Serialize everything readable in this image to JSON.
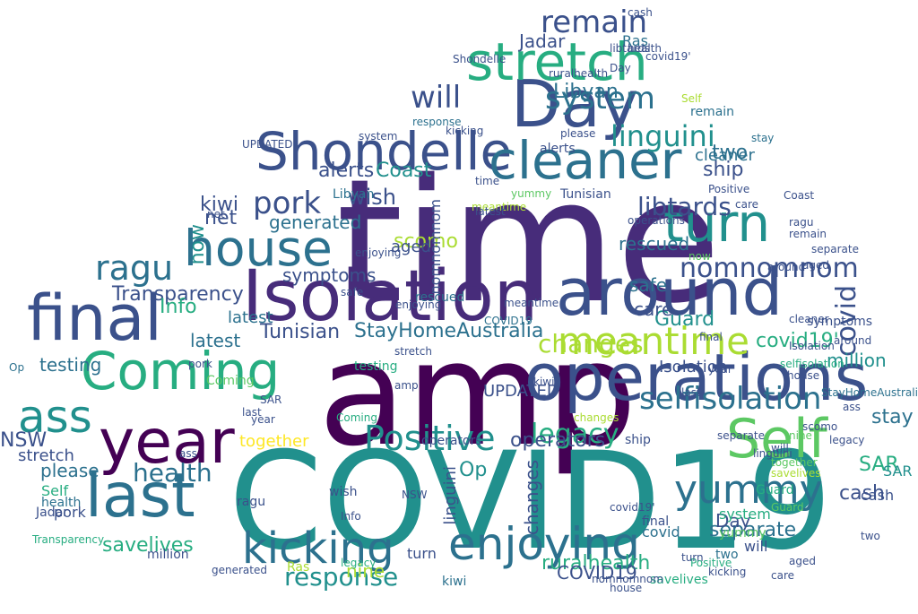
{
  "colors": {
    "background": "#ffffff",
    "palette": [
      "#440154",
      "#472c7a",
      "#3b518b",
      "#2c718e",
      "#21908d",
      "#27ad81",
      "#5cc863",
      "#aadc32",
      "#fde725"
    ]
  },
  "words": [
    {
      "text": "time",
      "color": "#472c7a"
    },
    {
      "text": "amp",
      "color": "#440154"
    },
    {
      "text": "COVID19",
      "color": "#21908d"
    },
    {
      "text": "Isolation",
      "color": "#472c7a"
    },
    {
      "text": "operations",
      "color": "#3b518b"
    },
    {
      "text": "around",
      "color": "#3b518b"
    },
    {
      "text": "Day",
      "color": "#3b518b"
    },
    {
      "text": "Shondelle",
      "color": "#3b518b"
    },
    {
      "text": "cleaner",
      "color": "#2c718e"
    },
    {
      "text": "stretch",
      "color": "#27ad81"
    },
    {
      "text": "house",
      "color": "#2c718e"
    },
    {
      "text": "Coming",
      "color": "#27ad81"
    },
    {
      "text": "last",
      "color": "#2c718e"
    },
    {
      "text": "final",
      "color": "#3b518b"
    },
    {
      "text": "year",
      "color": "#440154"
    },
    {
      "text": "Self",
      "color": "#5cc863"
    },
    {
      "text": "turn",
      "color": "#21908d"
    },
    {
      "text": "kicking",
      "color": "#2c718e"
    },
    {
      "text": "enjoying",
      "color": "#2c718e"
    },
    {
      "text": "ass",
      "color": "#21908d"
    },
    {
      "text": "meantime",
      "color": "#aadc32"
    },
    {
      "text": "nomnomnom",
      "color": "#3b518b"
    },
    {
      "text": "selfisolation",
      "color": "#2c718e"
    },
    {
      "text": "Positive",
      "color": "#21908d"
    },
    {
      "text": "yummy",
      "color": "#2c718e"
    },
    {
      "text": "remain",
      "color": "#3b518b"
    },
    {
      "text": "system",
      "color": "#2c718e"
    },
    {
      "text": "linguini",
      "color": "#21908d"
    },
    {
      "text": "pork",
      "color": "#3b518b"
    },
    {
      "text": "ragu",
      "color": "#2c718e"
    },
    {
      "text": "will",
      "color": "#3b518b"
    },
    {
      "text": "libtards",
      "color": "#3b518b"
    },
    {
      "text": "response",
      "color": "#21908d"
    },
    {
      "text": "covid",
      "color": "#3b518b"
    },
    {
      "text": "changes",
      "color": "#aadc32"
    },
    {
      "text": "legacy",
      "color": "#27ad81"
    },
    {
      "text": "health",
      "color": "#2c718e"
    },
    {
      "text": "Libyan",
      "color": "#2c718e"
    },
    {
      "text": "wish",
      "color": "#3b518b"
    },
    {
      "text": "alerts",
      "color": "#3b518b"
    },
    {
      "text": "StayHomeAustralia",
      "color": "#2c718e"
    },
    {
      "text": "Tunisian",
      "color": "#3b518b"
    },
    {
      "text": "Transparency",
      "color": "#3b518b"
    },
    {
      "text": "symptoms",
      "color": "#3b518b"
    },
    {
      "text": "generated",
      "color": "#2c718e"
    },
    {
      "text": "kiwi",
      "color": "#3b518b"
    },
    {
      "text": "net",
      "color": "#3b518b"
    },
    {
      "text": "scomo",
      "color": "#aadc32"
    },
    {
      "text": "testing",
      "color": "#2c718e"
    },
    {
      "text": "latest",
      "color": "#2c718e"
    },
    {
      "text": "Info",
      "color": "#27ad81"
    },
    {
      "text": "Coast",
      "color": "#21908d"
    },
    {
      "text": "Guard",
      "color": "#21908d"
    },
    {
      "text": "million",
      "color": "#21908d"
    },
    {
      "text": "UPDATED",
      "color": "#3b518b"
    },
    {
      "text": "safe",
      "color": "#2c718e"
    },
    {
      "text": "care",
      "color": "#3b518b"
    },
    {
      "text": "covid19'",
      "color": "#27ad81"
    },
    {
      "text": "savelives",
      "color": "#27ad81"
    },
    {
      "text": "separate",
      "color": "#2c718e"
    },
    {
      "text": "operators",
      "color": "#3b518b"
    },
    {
      "text": "cash",
      "color": "#3b518b"
    },
    {
      "text": "ship",
      "color": "#3b518b"
    },
    {
      "text": "rescued",
      "color": "#2c718e"
    },
    {
      "text": "two",
      "color": "#2c718e"
    },
    {
      "text": "stay",
      "color": "#2c718e"
    },
    {
      "text": "SAR",
      "color": "#27ad81"
    },
    {
      "text": "NSW",
      "color": "#3b518b"
    },
    {
      "text": "please",
      "color": "#2c718e"
    },
    {
      "text": "Op",
      "color": "#21908d"
    },
    {
      "text": "Jadar",
      "color": "#3b518b"
    },
    {
      "text": "nine",
      "color": "#aadc32"
    },
    {
      "text": "ruralhealth",
      "color": "#27ad81"
    },
    {
      "text": "COVID19",
      "color": "#3b518b"
    },
    {
      "text": "together",
      "color": "#fde725"
    },
    {
      "text": "Ras",
      "color": "#2c718e"
    },
    {
      "text": "aged",
      "color": "#3b518b"
    },
    {
      "text": "now",
      "color": "#21908d"
    },
    {
      "text": "Coming",
      "color": "#5cc863"
    },
    {
      "text": "cleaner",
      "color": "#2c718e"
    },
    {
      "text": "ragu",
      "color": "#3b518b"
    },
    {
      "text": "health",
      "color": "#2c718e"
    },
    {
      "text": "Self",
      "color": "#27ad81"
    },
    {
      "text": "pork",
      "color": "#3b518b"
    },
    {
      "text": "Day",
      "color": "#3b518b"
    },
    {
      "text": "linguini",
      "color": "#3b518b"
    },
    {
      "text": "changes",
      "color": "#3b518b"
    },
    {
      "text": "turn",
      "color": "#3b518b"
    },
    {
      "text": "system",
      "color": "#27ad81"
    },
    {
      "text": "stretch",
      "color": "#3b518b"
    },
    {
      "text": "latest",
      "color": "#2c718e"
    },
    {
      "text": "Isolation",
      "color": "#3b518b"
    },
    {
      "text": "SAR",
      "color": "#21908d"
    },
    {
      "text": "cash",
      "color": "#3b518b"
    },
    {
      "text": "savelives",
      "color": "#27ad81"
    },
    {
      "text": "covid",
      "color": "#2c718e"
    },
    {
      "text": "will",
      "color": "#3b518b"
    },
    {
      "text": "separate",
      "color": "#3b518b"
    },
    {
      "text": "nomnomnom",
      "color": "#3b518b"
    },
    {
      "text": "kiwi",
      "color": "#2c718e"
    },
    {
      "text": "wish",
      "color": "#3b518b"
    },
    {
      "text": "rescued",
      "color": "#2c718e"
    },
    {
      "text": "operators",
      "color": "#3b518b"
    },
    {
      "text": "Tunisian",
      "color": "#3b518b"
    },
    {
      "text": "Libyan",
      "color": "#2c718e"
    },
    {
      "text": "remain",
      "color": "#2c718e"
    },
    {
      "text": "yummy",
      "color": "#5cc863"
    },
    {
      "text": "two",
      "color": "#2c718e"
    },
    {
      "text": "ship",
      "color": "#3b518b"
    },
    {
      "text": "Ras",
      "color": "#aadc32"
    },
    {
      "text": "Jadar",
      "color": "#3b518b"
    },
    {
      "text": "testing",
      "color": "#27ad81"
    },
    {
      "text": "alerts",
      "color": "#3b518b"
    },
    {
      "text": "symptoms",
      "color": "#3b518b"
    },
    {
      "text": "Guard",
      "color": "#27ad81"
    },
    {
      "text": "final",
      "color": "#3b518b"
    },
    {
      "text": "million",
      "color": "#3b518b"
    },
    {
      "text": "Coast",
      "color": "#3b518b"
    },
    {
      "text": "UPDATED",
      "color": "#3b518b"
    },
    {
      "text": "Positive",
      "color": "#27ad81"
    },
    {
      "text": "legacy",
      "color": "#27ad81"
    },
    {
      "text": "meantime",
      "color": "#aadc32"
    },
    {
      "text": "response",
      "color": "#2c718e"
    },
    {
      "text": "kicking",
      "color": "#3b518b"
    },
    {
      "text": "enjoying",
      "color": "#3b518b"
    },
    {
      "text": "selfisolation",
      "color": "#27ad81"
    },
    {
      "text": "StayHomeAustralia",
      "color": "#2c718e"
    },
    {
      "text": "Transparency",
      "color": "#27ad81"
    },
    {
      "text": "ruralhealth",
      "color": "#3b518b"
    },
    {
      "text": "generated",
      "color": "#3b518b"
    },
    {
      "text": "around",
      "color": "#3b518b"
    },
    {
      "text": "house",
      "color": "#3b518b"
    },
    {
      "text": "care",
      "color": "#3b518b"
    },
    {
      "text": "aged",
      "color": "#3b518b"
    },
    {
      "text": "now",
      "color": "#5cc863"
    },
    {
      "text": "net",
      "color": "#3b518b"
    },
    {
      "text": "scomo",
      "color": "#3b518b"
    },
    {
      "text": "covid19'",
      "color": "#3b518b"
    },
    {
      "text": "please",
      "color": "#3b518b"
    },
    {
      "text": "stay",
      "color": "#2c718e"
    },
    {
      "text": "Op",
      "color": "#2c718e"
    },
    {
      "text": "NSW",
      "color": "#3b518b"
    },
    {
      "text": "nine",
      "color": "#5cc863"
    },
    {
      "text": "libtards",
      "color": "#3b518b"
    },
    {
      "text": "safe",
      "color": "#3b518b"
    },
    {
      "text": "ass",
      "color": "#3b518b"
    },
    {
      "text": "Info",
      "color": "#3b518b"
    },
    {
      "text": "year",
      "color": "#3b518b"
    },
    {
      "text": "together",
      "color": "#5cc863"
    },
    {
      "text": "last",
      "color": "#3b518b"
    },
    {
      "text": "time",
      "color": "#3b518b"
    },
    {
      "text": "amp",
      "color": "#3b518b"
    },
    {
      "text": "COVID19",
      "color": "#2c718e"
    },
    {
      "text": "operations",
      "color": "#3b518b"
    },
    {
      "text": "Shondelle",
      "color": "#3b518b"
    },
    {
      "text": "Coming",
      "color": "#27ad81"
    },
    {
      "text": "cleaner",
      "color": "#3b518b"
    },
    {
      "text": "Self",
      "color": "#aadc32"
    },
    {
      "text": "health",
      "color": "#3b518b"
    },
    {
      "text": "pork",
      "color": "#3b518b"
    },
    {
      "text": "Day",
      "color": "#3b518b"
    },
    {
      "text": "ragu",
      "color": "#3b518b"
    },
    {
      "text": "kiwi",
      "color": "#3b518b"
    },
    {
      "text": "changes",
      "color": "#aadc32"
    },
    {
      "text": "turn",
      "color": "#3b518b"
    },
    {
      "text": "legacy",
      "color": "#3b518b"
    },
    {
      "text": "cash",
      "color": "#3b518b"
    },
    {
      "text": "will",
      "color": "#3b518b"
    },
    {
      "text": "yummy",
      "color": "#5cc863"
    },
    {
      "text": "stretch",
      "color": "#3b518b"
    },
    {
      "text": "SAR",
      "color": "#3b518b"
    },
    {
      "text": "latest",
      "color": "#3b518b"
    },
    {
      "text": "final",
      "color": "#3b518b"
    },
    {
      "text": "two",
      "color": "#3b518b"
    },
    {
      "text": "meantime",
      "color": "#3b518b"
    },
    {
      "text": "enjoying",
      "color": "#3b518b"
    },
    {
      "text": "system",
      "color": "#3b518b"
    },
    {
      "text": "remain",
      "color": "#3b518b"
    },
    {
      "text": "savelives",
      "color": "#aadc32"
    },
    {
      "text": "Positive",
      "color": "#3b518b"
    },
    {
      "text": "separate",
      "color": "#3b518b"
    },
    {
      "text": "house",
      "color": "#3b518b"
    },
    {
      "text": "Guard",
      "color": "#5cc863"
    },
    {
      "text": "covid19'",
      "color": "#3b518b"
    },
    {
      "text": "nomnomnom",
      "color": "#3b518b"
    },
    {
      "text": "aged",
      "color": "#3b518b"
    },
    {
      "text": "care",
      "color": "#3b518b"
    },
    {
      "text": "Isolation",
      "color": "#3b518b"
    },
    {
      "text": "kicking",
      "color": "#3b518b"
    },
    {
      "text": "ass",
      "color": "#3b518b"
    },
    {
      "text": "year",
      "color": "#3b518b"
    },
    {
      "text": "last",
      "color": "#3b518b"
    },
    {
      "text": "linguini",
      "color": "#3b518b"
    },
    {
      "text": "around",
      "color": "#3b518b"
    }
  ]
}
